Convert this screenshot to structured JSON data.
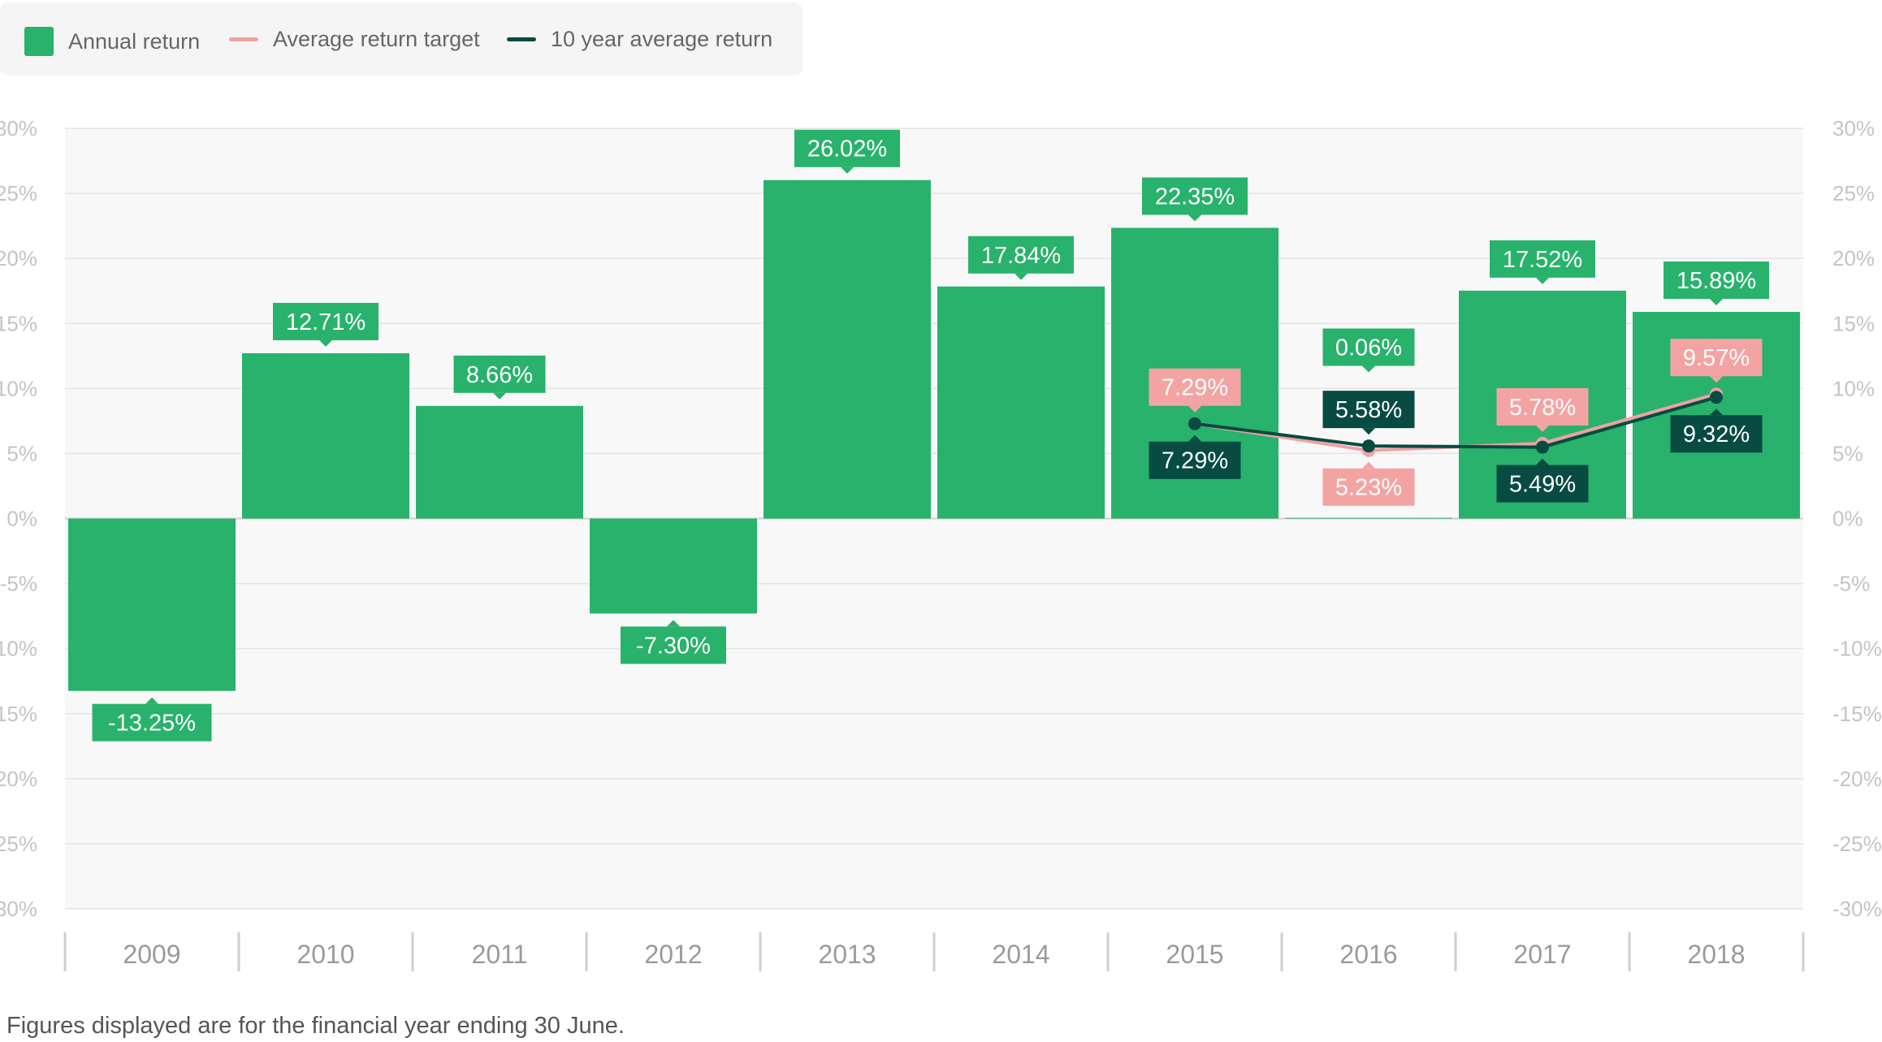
{
  "legend": {
    "items": [
      {
        "label": "Annual return",
        "color": "#28b26c",
        "shape": "square"
      },
      {
        "label": "Average return target",
        "color": "#f0a1a1",
        "shape": "line"
      },
      {
        "label": "10 year average return",
        "color": "#074b43",
        "shape": "line"
      }
    ]
  },
  "footnote": "Figures displayed are for the financial year ending 30 June.",
  "chart_data": {
    "type": "bar",
    "categories": [
      "2009",
      "2010",
      "2011",
      "2012",
      "2013",
      "2014",
      "2015",
      "2016",
      "2017",
      "2018"
    ],
    "ylim": [
      -30,
      30
    ],
    "yticks": [
      30,
      25,
      20,
      15,
      10,
      5,
      0,
      -5,
      -10,
      -15,
      -20,
      -25,
      -30
    ],
    "ytick_labels": [
      "30%",
      "25%",
      "20%",
      "15%",
      "10%",
      "5%",
      "0%",
      "-5%",
      "-10%",
      "-15%",
      "-20%",
      "-25%",
      "-30%"
    ],
    "grid": true,
    "legend_position": "top-left",
    "series": [
      {
        "name": "Annual return",
        "type": "bar",
        "color": "#28b26c",
        "values": [
          -13.25,
          12.71,
          8.66,
          -7.3,
          26.02,
          17.84,
          22.35,
          0.06,
          17.52,
          15.89
        ],
        "labels": [
          "-13.25%",
          "12.71%",
          "8.66%",
          "-7.30%",
          "26.02%",
          "17.84%",
          "22.35%",
          "0.06%",
          "17.52%",
          "15.89%"
        ]
      },
      {
        "name": "Average return target",
        "type": "line",
        "color": "#f0a1a1",
        "values": [
          null,
          null,
          null,
          null,
          null,
          null,
          7.29,
          5.23,
          5.78,
          9.57
        ],
        "labels": [
          null,
          null,
          null,
          null,
          null,
          null,
          "7.29%",
          "5.23%",
          "5.78%",
          "9.57%"
        ]
      },
      {
        "name": "10 year average return",
        "type": "line",
        "color": "#074b43",
        "values": [
          null,
          null,
          null,
          null,
          null,
          null,
          7.29,
          5.58,
          5.49,
          9.32
        ],
        "labels": [
          null,
          null,
          null,
          null,
          null,
          null,
          "7.29%",
          "5.58%",
          "5.49%",
          "9.32%"
        ]
      }
    ]
  }
}
